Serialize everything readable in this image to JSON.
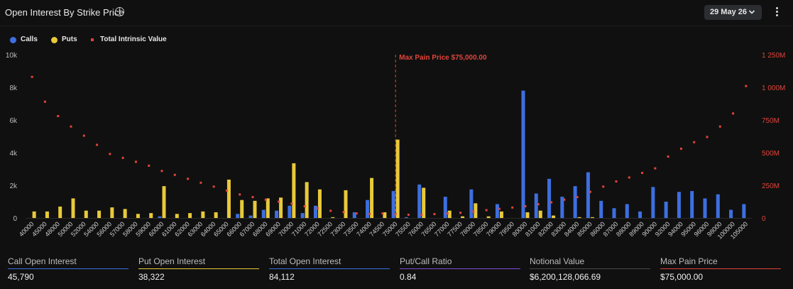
{
  "header": {
    "title": "Open Interest By Strike Price",
    "info_icon": "info-icon",
    "date_selected": "29 May 26",
    "dropdown_icon": "chevron-down-icon",
    "menu_icon": "kebab-menu-icon"
  },
  "colors": {
    "calls": "#3d6fe0",
    "puts": "#e8c93a",
    "intrinsic": "#e0443a",
    "maxpain": "#e0443a",
    "call_oi_underline": "#3d6fe0",
    "put_oi_underline": "#e8c93a",
    "total_oi_underline": "#3d6fe0",
    "ratio_underline": "#7b4fd6",
    "notional_underline": "#4a4a4a",
    "maxpain_underline": "#e0443a"
  },
  "chart_data": {
    "type": "bar",
    "legend": [
      "Calls",
      "Puts",
      "Total Intrinsic Value"
    ],
    "legend_position": "top-left",
    "categories": [
      "40000",
      "45000",
      "48000",
      "50000",
      "52000",
      "54000",
      "56000",
      "57000",
      "58000",
      "59000",
      "60000",
      "61000",
      "62000",
      "63000",
      "64000",
      "65000",
      "66000",
      "67000",
      "68000",
      "69000",
      "70000",
      "71000",
      "72000",
      "72500",
      "73000",
      "73500",
      "74000",
      "74500",
      "75000",
      "75500",
      "76000",
      "76500",
      "77000",
      "77500",
      "78000",
      "78500",
      "79000",
      "79500",
      "80000",
      "81000",
      "82000",
      "83000",
      "84000",
      "85000",
      "86000",
      "87000",
      "88000",
      "89000",
      "90000",
      "92000",
      "94000",
      "95000",
      "96000",
      "98000",
      "100000",
      "105000"
    ],
    "series": [
      {
        "name": "Calls",
        "axis": "left",
        "values": [
          0,
          0,
          0,
          0,
          0,
          0,
          0,
          0,
          0,
          0,
          100,
          0,
          0,
          0,
          0,
          0,
          250,
          150,
          500,
          450,
          750,
          300,
          750,
          0,
          0,
          350,
          1100,
          0,
          1650,
          50,
          2050,
          0,
          1300,
          0,
          1750,
          0,
          850,
          0,
          7800,
          1500,
          2400,
          1300,
          1950,
          2800,
          1050,
          600,
          850,
          400,
          1900,
          1000,
          1600,
          1650,
          1200,
          1450,
          500,
          850
        ]
      },
      {
        "name": "Puts",
        "axis": "left",
        "values": [
          400,
          400,
          700,
          1200,
          450,
          450,
          650,
          550,
          250,
          300,
          1950,
          250,
          300,
          400,
          350,
          2350,
          1100,
          1050,
          1200,
          1250,
          3350,
          2200,
          1750,
          50,
          1700,
          0,
          2450,
          350,
          4800,
          0,
          1850,
          0,
          450,
          100,
          900,
          100,
          400,
          0,
          350,
          450,
          150,
          0,
          50,
          50,
          0,
          0,
          0,
          0,
          0,
          0,
          0,
          0,
          0,
          0,
          0,
          0
        ]
      },
      {
        "name": "Total Intrinsic Value",
        "axis": "right",
        "type": "scatter",
        "values": [
          1080000000,
          890000000,
          780000000,
          700000000,
          630000000,
          560000000,
          490000000,
          460000000,
          430000000,
          400000000,
          360000000,
          330000000,
          300000000,
          270000000,
          240000000,
          210000000,
          180000000,
          160000000,
          140000000,
          125000000,
          110000000,
          90000000,
          75000000,
          55000000,
          45000000,
          35000000,
          30000000,
          35000000,
          30000000,
          25000000,
          25000000,
          30000000,
          35000000,
          40000000,
          50000000,
          60000000,
          70000000,
          80000000,
          90000000,
          105000000,
          120000000,
          140000000,
          160000000,
          200000000,
          240000000,
          280000000,
          310000000,
          345000000,
          380000000,
          470000000,
          530000000,
          580000000,
          620000000,
          700000000,
          800000000,
          1010000000
        ]
      }
    ],
    "ylim_left": [
      0,
      10000
    ],
    "yticks_left": [
      "0",
      "2k",
      "4k",
      "6k",
      "8k",
      "10k"
    ],
    "ylim_right": [
      0,
      1250000000
    ],
    "yticks_right": [
      "0",
      "250M",
      "500M",
      "750M",
      "1 000M",
      "1 250M"
    ],
    "max_pain": {
      "strike": "75000",
      "label": "Max Pain Price $75,000.00"
    },
    "grid": false
  },
  "stats": [
    {
      "label": "Call Open Interest",
      "value": "45,790"
    },
    {
      "label": "Put Open Interest",
      "value": "38,322"
    },
    {
      "label": "Total Open Interest",
      "value": "84,112"
    },
    {
      "label": "Put/Call Ratio",
      "value": "0.84"
    },
    {
      "label": "Notional Value",
      "value": "$6,200,128,066.69"
    },
    {
      "label": "Max Pain Price",
      "value": "$75,000.00"
    }
  ]
}
